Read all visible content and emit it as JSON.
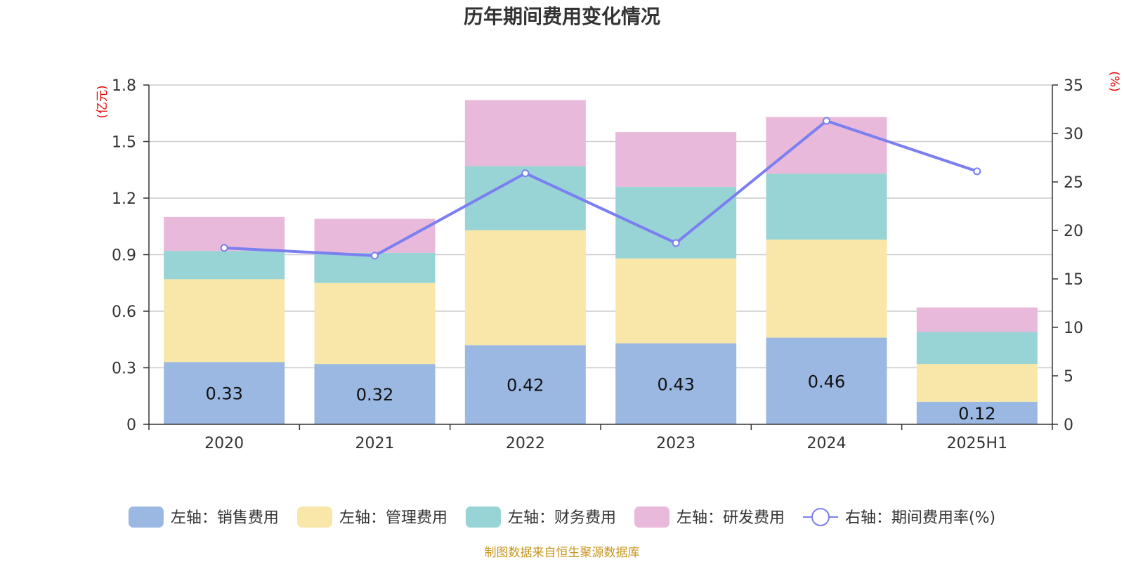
{
  "chart_data": {
    "type": "bar",
    "title": "历年期间费用变化情况",
    "categories": [
      "2020",
      "2021",
      "2022",
      "2023",
      "2024",
      "2025H1"
    ],
    "left_axis": {
      "unit": "(亿元)",
      "ylim": [
        0,
        1.8
      ],
      "ticks": [
        "0",
        "0.3",
        "0.6",
        "0.9",
        "1.2",
        "1.5",
        "1.8"
      ]
    },
    "right_axis": {
      "unit": "(%)",
      "ylim": [
        0,
        35
      ],
      "ticks": [
        "0",
        "5",
        "10",
        "15",
        "20",
        "25",
        "30",
        "35"
      ]
    },
    "series": [
      {
        "name": "左轴：销售费用",
        "type": "bar",
        "stack": true,
        "color": "#9bb8e3",
        "values": [
          0.33,
          0.32,
          0.42,
          0.43,
          0.46,
          0.12
        ],
        "labels": [
          "0.33",
          "0.32",
          "0.42",
          "0.43",
          "0.46",
          "0.12"
        ]
      },
      {
        "name": "左轴：管理费用",
        "type": "bar",
        "stack": true,
        "color": "#f8e7a8",
        "values": [
          0.44,
          0.43,
          0.61,
          0.45,
          0.52,
          0.2
        ]
      },
      {
        "name": "左轴：财务费用",
        "type": "bar",
        "stack": true,
        "color": "#98d4d5",
        "values": [
          0.15,
          0.16,
          0.34,
          0.38,
          0.35,
          0.17
        ]
      },
      {
        "name": "左轴：研发费用",
        "type": "bar",
        "stack": true,
        "color": "#e8b9da",
        "values": [
          0.18,
          0.18,
          0.35,
          0.29,
          0.3,
          0.13
        ]
      },
      {
        "name": "右轴：期间费用率(%)",
        "type": "line",
        "axis": "right",
        "color": "#7b7ff0",
        "values": [
          18.2,
          17.4,
          25.9,
          18.7,
          31.3,
          26.1
        ]
      }
    ],
    "grid": true,
    "legend": "bottom",
    "source": "制图数据来自恒生聚源数据库"
  }
}
